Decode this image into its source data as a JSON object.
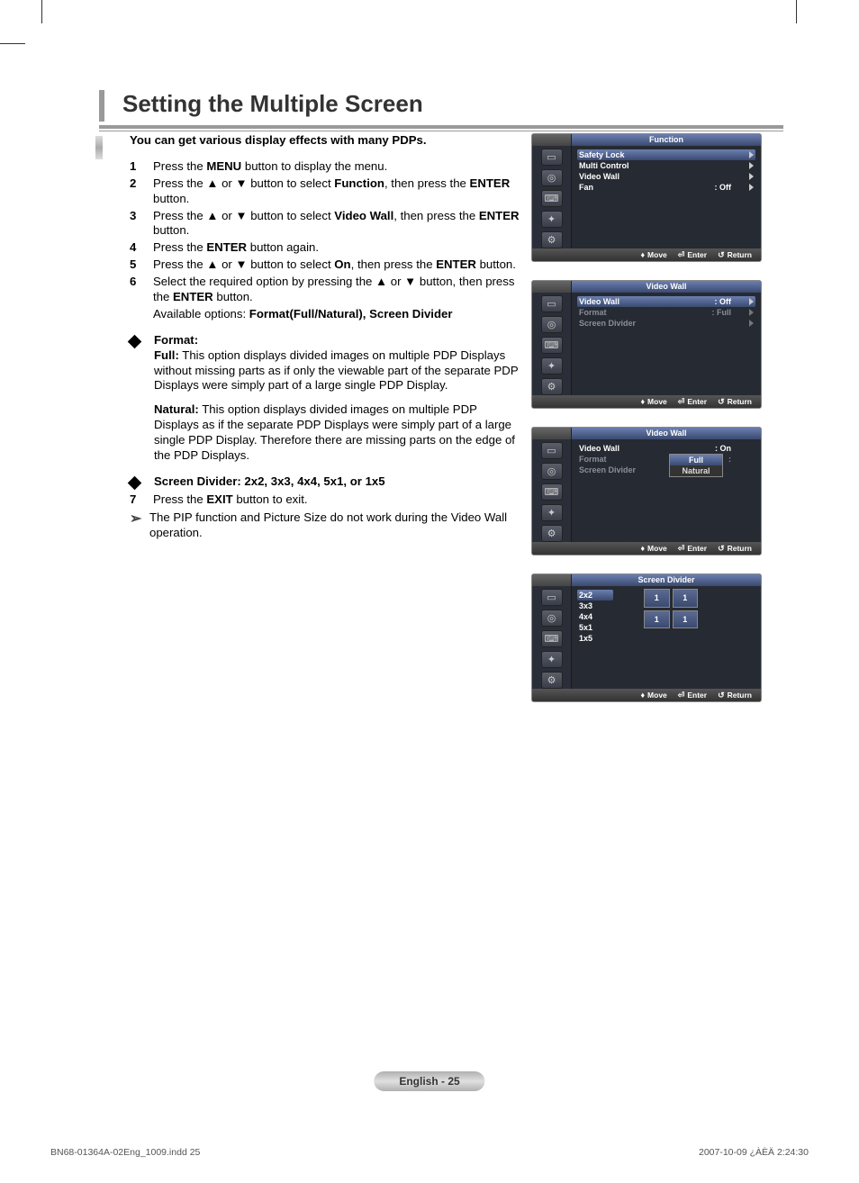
{
  "page_title": "Setting the Multiple Screen",
  "intro": "You can get various display effects with many PDPs.",
  "steps": [
    {
      "n": "1",
      "parts": [
        {
          "t": "Press the "
        },
        {
          "t": "MENU",
          "b": true
        },
        {
          "t": " button to display the menu."
        }
      ]
    },
    {
      "n": "2",
      "parts": [
        {
          "t": "Press the ▲ or ▼ button to select "
        },
        {
          "t": "Function",
          "b": true
        },
        {
          "t": ", then press the "
        },
        {
          "t": "ENTER",
          "b": true
        },
        {
          "t": " button."
        }
      ]
    },
    {
      "n": "3",
      "parts": [
        {
          "t": "Press the ▲ or ▼ button to select "
        },
        {
          "t": "Video Wall",
          "b": true
        },
        {
          "t": ", then press the "
        },
        {
          "t": "ENTER",
          "b": true
        },
        {
          "t": " button."
        }
      ]
    },
    {
      "n": "4",
      "parts": [
        {
          "t": "Press the "
        },
        {
          "t": "ENTER",
          "b": true
        },
        {
          "t": " button again."
        }
      ]
    },
    {
      "n": "5",
      "parts": [
        {
          "t": "Press the ▲ or ▼ button to select "
        },
        {
          "t": "On",
          "b": true
        },
        {
          "t": ", then press the "
        },
        {
          "t": "ENTER",
          "b": true
        },
        {
          "t": " button."
        }
      ]
    },
    {
      "n": "6",
      "parts": [
        {
          "t": "Select the required option by pressing the ▲ or ▼ button, then press the "
        },
        {
          "t": "ENTER",
          "b": true
        },
        {
          "t": " button."
        }
      ],
      "sub": [
        {
          "t": "Available options: "
        },
        {
          "t": "Format(Full/Natural), Screen Divider",
          "b": true
        }
      ]
    }
  ],
  "format_label": "Format:",
  "format_full_label": "Full:",
  "format_full_text": " This option displays divided images on multiple PDP Displays without missing parts as if only the viewable part of the separate PDP Displays were simply part of a large single PDP Display.",
  "format_natural_label": "Natural:",
  "format_natural_text": " This option displays divided images on multiple PDP Displays as if the separate PDP Displays were simply part of a large single PDP Display. Therefore there are missing parts on the edge of the PDP Displays.",
  "screen_divider_label": "Screen Divider: 2x2, 3x3, 4x4, 5x1, or 1x5",
  "step7": {
    "n": "7",
    "parts": [
      {
        "t": "Press the "
      },
      {
        "t": "EXIT",
        "b": true
      },
      {
        "t": " button to exit."
      }
    ]
  },
  "pip_note": "The PIP function and Picture Size do not work during the Video Wall operation.",
  "osd_footer": {
    "move": "Move",
    "enter": "Enter",
    "return": "Return"
  },
  "osd1": {
    "title": "Function",
    "rows": [
      {
        "label": "Safety Lock",
        "val": "",
        "arrow": true,
        "hl": true
      },
      {
        "label": "Multi Control",
        "val": "",
        "arrow": true
      },
      {
        "label": "Video Wall",
        "val": "",
        "arrow": true
      },
      {
        "label": "Fan",
        "val": ": Off",
        "arrow": true
      }
    ]
  },
  "osd2": {
    "title": "Video Wall",
    "rows": [
      {
        "label": "Video Wall",
        "val": ": Off",
        "arrow": true,
        "hl": true
      },
      {
        "label": "Format",
        "val": ": Full",
        "arrow": true,
        "dim": true
      },
      {
        "label": "Screen Divider",
        "val": "",
        "arrow": true,
        "dim": true
      }
    ]
  },
  "osd3": {
    "title": "Video Wall",
    "rows": [
      {
        "label": "Video Wall",
        "val": ": On",
        "arrow": false
      },
      {
        "label": "Format",
        "val": ":",
        "arrow": false,
        "dim": true
      },
      {
        "label": "Screen Divider",
        "val": "",
        "arrow": false,
        "dim": true
      }
    ],
    "dropdown": [
      "Full",
      "Natural"
    ],
    "dropdown_sel": 0
  },
  "osd4": {
    "title": "Screen Divider",
    "options": [
      "2x2",
      "3x3",
      "4x4",
      "5x1",
      "1x5"
    ],
    "grid": [
      "1",
      "1",
      "1",
      "1"
    ]
  },
  "sidebar_icons": [
    "▭",
    "◎",
    "⌨",
    "✦",
    "⚙"
  ],
  "page_num_label": "English - 25",
  "footer_left": "BN68-01364A-02Eng_1009.indd   25",
  "footer_right": "2007-10-09   ¿ÀÈÄ 2:24:30"
}
